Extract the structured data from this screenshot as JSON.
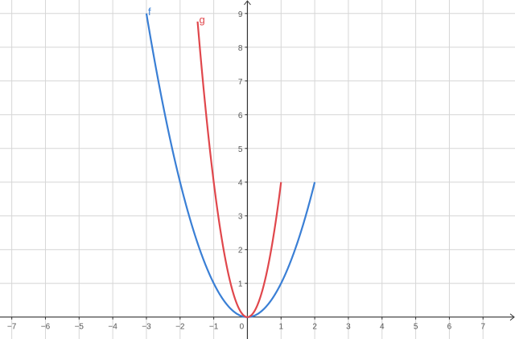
{
  "chart_data": {
    "type": "line",
    "title": "",
    "xlabel": "",
    "ylabel": "",
    "xlim": [
      -7.35,
      7.95
    ],
    "ylim": [
      -0.65,
      9.4
    ],
    "grid": true,
    "x_ticks": [
      -7,
      -6,
      -5,
      -4,
      -3,
      -2,
      -1,
      0,
      1,
      2,
      3,
      4,
      5,
      6,
      7
    ],
    "y_ticks": [
      1,
      2,
      3,
      4,
      5,
      6,
      7,
      8,
      9
    ],
    "series": [
      {
        "name": "f",
        "expression": "x^2",
        "domain": [
          -3,
          2
        ],
        "color": "#3a7fd5"
      },
      {
        "name": "g",
        "expression": "4x^2",
        "domain": [
          -1.48,
          1
        ],
        "color": "#e0474c"
      }
    ]
  }
}
